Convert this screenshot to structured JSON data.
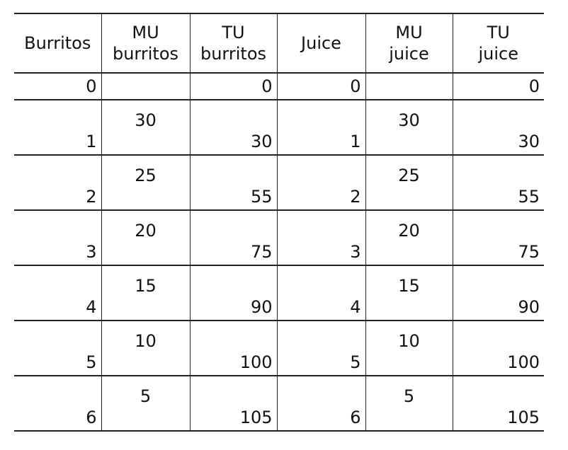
{
  "table": {
    "headers": [
      {
        "lines": [
          "Burritos"
        ]
      },
      {
        "lines": [
          "MU",
          "burritos"
        ]
      },
      {
        "lines": [
          "TU",
          "burritos"
        ]
      },
      {
        "lines": [
          "Juice"
        ]
      },
      {
        "lines": [
          "MU",
          "juice"
        ]
      },
      {
        "lines": [
          "TU",
          "juice"
        ]
      }
    ],
    "rows": [
      {
        "burritos": "0",
        "mu_burritos": "",
        "tu_burritos": "0",
        "juice": "0",
        "mu_juice": "",
        "tu_juice": "0"
      },
      {
        "burritos": "1",
        "mu_burritos": "30",
        "tu_burritos": "30",
        "juice": "1",
        "mu_juice": "30",
        "tu_juice": "30"
      },
      {
        "burritos": "2",
        "mu_burritos": "25",
        "tu_burritos": "55",
        "juice": "2",
        "mu_juice": "25",
        "tu_juice": "55"
      },
      {
        "burritos": "3",
        "mu_burritos": "20",
        "tu_burritos": "75",
        "juice": "3",
        "mu_juice": "20",
        "tu_juice": "75"
      },
      {
        "burritos": "4",
        "mu_burritos": "15",
        "tu_burritos": "90",
        "juice": "4",
        "mu_juice": "15",
        "tu_juice": "90"
      },
      {
        "burritos": "5",
        "mu_burritos": "10",
        "tu_burritos": "100",
        "juice": "5",
        "mu_juice": "10",
        "tu_juice": "100"
      },
      {
        "burritos": "6",
        "mu_burritos": "5",
        "tu_burritos": "105",
        "juice": "6",
        "mu_juice": "5",
        "tu_juice": "105"
      }
    ]
  }
}
